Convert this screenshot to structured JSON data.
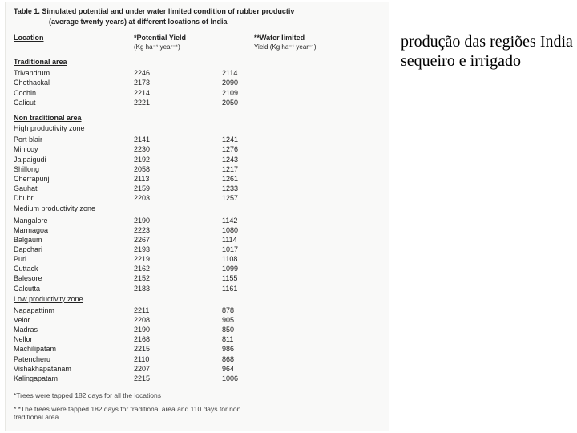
{
  "table": {
    "caption_line1": "Table 1.  Simulated potential  and  under water limited condition  of rubber productiv",
    "caption_line2": "(average twenty years) at different locations of India",
    "headers": {
      "location": "Location",
      "potential": "*Potential Yield",
      "potential_unit": "(Kg ha⁻¹ year⁻¹)",
      "water": "**Water limited",
      "water_unit": "Yield (Kg ha⁻¹ year⁻¹)"
    },
    "sections": [
      {
        "title": "Traditional area",
        "subsections": [
          {
            "title": "",
            "rows": [
              {
                "loc": "Trivandrum",
                "p": "2246",
                "w": "2114"
              },
              {
                "loc": "Chethackal",
                "p": "2173",
                "w": "2090"
              },
              {
                "loc": "Cochin",
                "p": "2214",
                "w": "2109"
              },
              {
                "loc": "Calicut",
                "p": "2221",
                "w": "2050"
              }
            ]
          }
        ]
      },
      {
        "title": "Non traditional area",
        "subsections": [
          {
            "title": "High productivity zone",
            "rows": [
              {
                "loc": "Port blair",
                "p": "2141",
                "w": "1241"
              },
              {
                "loc": "Minicoy",
                "p": "2230",
                "w": "1276"
              },
              {
                "loc": "Jalpaigudi",
                "p": "2192",
                "w": "1243"
              },
              {
                "loc": "Shillong",
                "p": "2058",
                "w": "1217"
              },
              {
                "loc": "Cherrapunji",
                "p": "2113",
                "w": "1261"
              },
              {
                "loc": "Gauhati",
                "p": "2159",
                "w": "1233"
              },
              {
                "loc": "Dhubri",
                "p": "2203",
                "w": "1257"
              }
            ]
          },
          {
            "title": "Medium productivity zone",
            "rows": [
              {
                "loc": "Mangalore",
                "p": "2190",
                "w": "1142"
              },
              {
                "loc": "Marmagoa",
                "p": "2223",
                "w": "1080"
              },
              {
                "loc": "Balgaum",
                "p": "2267",
                "w": "1114"
              },
              {
                "loc": "Dapchari",
                "p": "2193",
                "w": "1017"
              },
              {
                "loc": "Puri",
                "p": "2219",
                "w": "1108"
              },
              {
                "loc": "Cuttack",
                "p": "2162",
                "w": "1099"
              },
              {
                "loc": "Balesore",
                "p": "2152",
                "w": "1155"
              },
              {
                "loc": "Calcutta",
                "p": "2183",
                "w": "1161"
              }
            ]
          },
          {
            "title": "Low  productivity zone",
            "rows": [
              {
                "loc": "Nagapattinm",
                "p": "2211",
                "w": "878"
              },
              {
                "loc": "Velor",
                "p": "2208",
                "w": "905"
              },
              {
                "loc": "Madras",
                "p": "2190",
                "w": "850"
              },
              {
                "loc": "Nellor",
                "p": "2168",
                "w": "811"
              },
              {
                "loc": "Machilipatam",
                "p": "2215",
                "w": "986"
              },
              {
                "loc": "Patencheru",
                "p": "2110",
                "w": "868"
              },
              {
                "loc": "Vishakhapatanam",
                "p": "2207",
                "w": "964"
              },
              {
                "loc": "Kalingapatam",
                "p": "2215",
                "w": "1006"
              }
            ]
          }
        ]
      }
    ],
    "footnote1": "*Trees were tapped 182 days for all the locations",
    "footnote2": "* *The trees were tapped  182 days for traditional area and 110 days for non",
    "footnote3": "traditional area"
  },
  "annotation": {
    "line1": "produção das regiões India",
    "line2": "sequeiro e irrigado"
  }
}
